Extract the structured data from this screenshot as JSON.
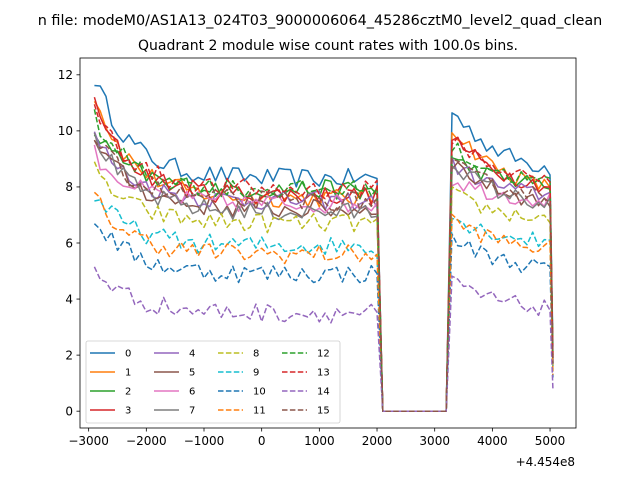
{
  "figure": {
    "suptitle": "n file: modeM0/AS1A13_024T03_9000006064_45286cztM0_level2_quad_clean",
    "title": "Quadrant 2 module wise count rates with 100.0s bins.",
    "offset_text": "+4.454e8"
  },
  "chart_data": {
    "type": "line",
    "title": "Quadrant 2 module wise count rates with 100.0s bins.",
    "xlabel": "",
    "ylabel": "",
    "x_offset": 445400000,
    "xlim": [
      -3150,
      5450
    ],
    "ylim": [
      -0.6,
      12.6
    ],
    "xticks": [
      -3000,
      -2000,
      -1000,
      0,
      1000,
      2000,
      3000,
      4000,
      5000
    ],
    "xtick_labels": [
      "−3000",
      "−2000",
      "−1000",
      "0",
      "1000",
      "2000",
      "3000",
      "4000",
      "5000"
    ],
    "yticks": [
      0,
      2,
      4,
      6,
      8,
      10,
      12
    ],
    "ytick_labels": [
      "0",
      "2",
      "4",
      "6",
      "8",
      "10",
      "12"
    ],
    "grid": false,
    "legend": {
      "placement": "lower-left",
      "columns": 4
    },
    "segments": {
      "x_start": -2900,
      "step": 100,
      "seg1_end": 2000,
      "gap_start": 2100,
      "gap_end": 3200,
      "seg2_start": 3300,
      "seg2_end": 5000,
      "x_last": 5050
    },
    "series": [
      {
        "name": "0",
        "color": "#1f77b4",
        "style": "solid",
        "start": 11.9,
        "plateau": 8.3,
        "last": 2.3
      },
      {
        "name": "1",
        "color": "#ff7f0e",
        "style": "solid",
        "start": 11.3,
        "plateau": 7.6,
        "last": 1.9
      },
      {
        "name": "2",
        "color": "#2ca02c",
        "style": "solid",
        "start": 10.0,
        "plateau": 7.9,
        "last": 1.8
      },
      {
        "name": "3",
        "color": "#d62728",
        "style": "solid",
        "start": 10.9,
        "plateau": 7.7,
        "last": 1.9
      },
      {
        "name": "4",
        "color": "#9467bd",
        "style": "solid",
        "start": 9.8,
        "plateau": 7.5,
        "last": 1.7
      },
      {
        "name": "5",
        "color": "#8c564b",
        "style": "solid",
        "start": 9.9,
        "plateau": 7.2,
        "last": 1.6
      },
      {
        "name": "6",
        "color": "#e377c2",
        "style": "solid",
        "start": 9.2,
        "plateau": 7.4,
        "last": 1.8
      },
      {
        "name": "7",
        "color": "#7f7f7f",
        "style": "solid",
        "start": 9.9,
        "plateau": 7.1,
        "last": 1.7
      },
      {
        "name": "8",
        "color": "#bcbd22",
        "style": "dashed",
        "start": 8.6,
        "plateau": 6.7,
        "last": 1.5
      },
      {
        "name": "9",
        "color": "#17becf",
        "style": "dashed",
        "start": 7.7,
        "plateau": 5.9,
        "last": 1.4
      },
      {
        "name": "10",
        "color": "#1f77b4",
        "style": "dashed",
        "start": 6.9,
        "plateau": 4.9,
        "last": 1.2
      },
      {
        "name": "11",
        "color": "#ff7f0e",
        "style": "dashed",
        "start": 7.6,
        "plateau": 5.6,
        "last": 1.3
      },
      {
        "name": "12",
        "color": "#2ca02c",
        "style": "dashed",
        "start": 10.5,
        "plateau": 7.9,
        "last": 2.0
      },
      {
        "name": "13",
        "color": "#d62728",
        "style": "dashed",
        "start": 10.9,
        "plateau": 7.9,
        "last": 2.0
      },
      {
        "name": "14",
        "color": "#9467bd",
        "style": "dashed",
        "start": 5.1,
        "plateau": 3.5,
        "last": 0.8
      },
      {
        "name": "15",
        "color": "#8c564b",
        "style": "dashed",
        "start": 9.8,
        "plateau": 7.5,
        "last": 1.7
      }
    ]
  }
}
